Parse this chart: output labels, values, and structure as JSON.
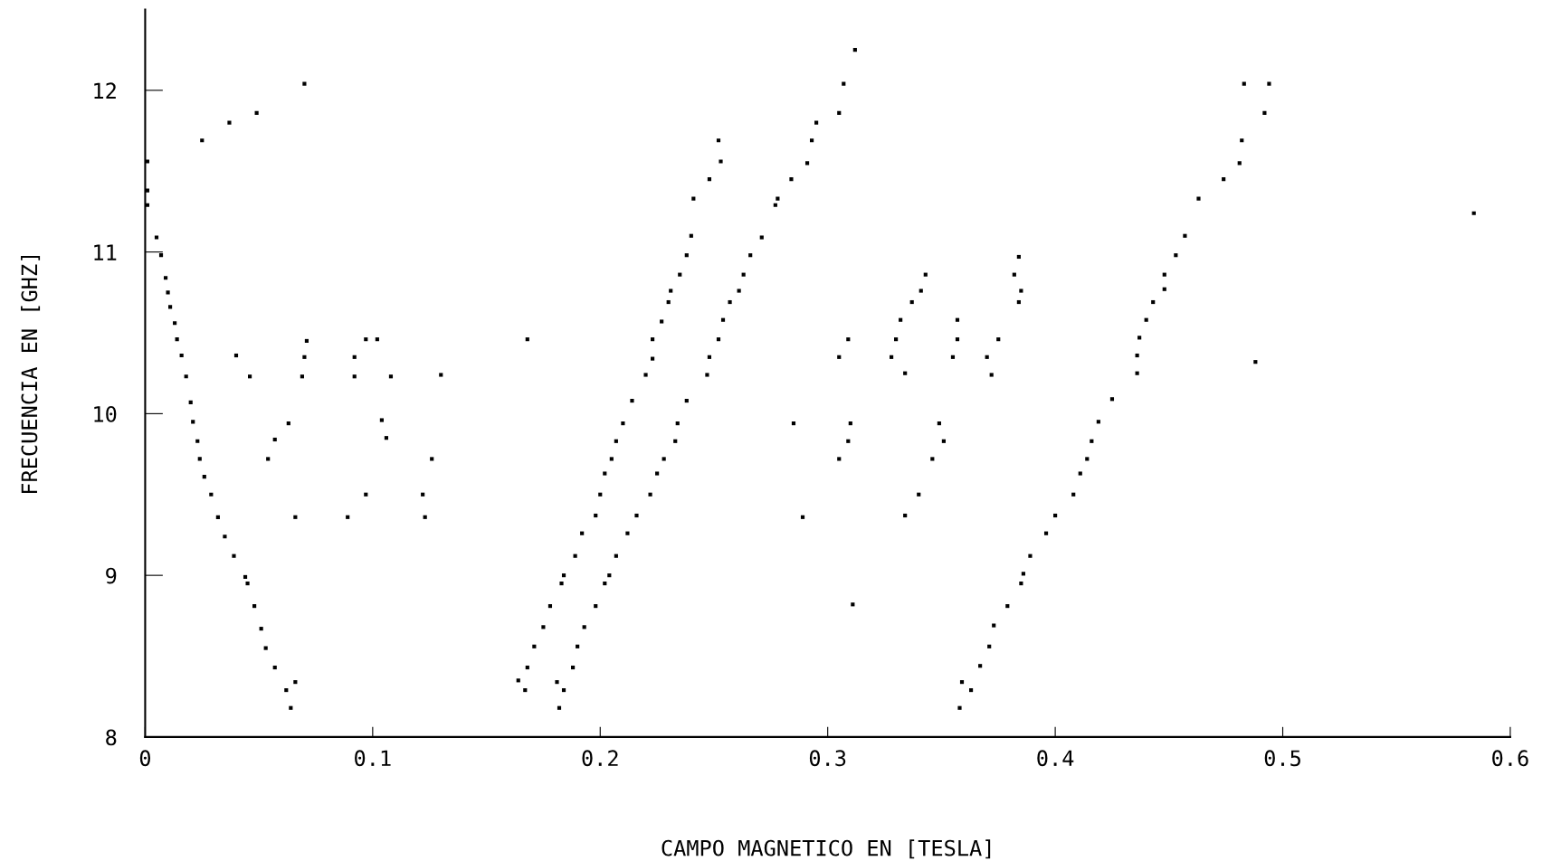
{
  "chart_data": {
    "type": "scatter",
    "xlabel": "CAMPO MAGNETICO EN [TESLA]",
    "ylabel": "FRECUENCIA EN [GHZ]",
    "xlim": [
      0,
      0.6
    ],
    "ylim": [
      8,
      12.5
    ],
    "xticks": [
      0,
      0.1,
      0.2,
      0.3,
      0.4,
      0.5,
      0.6
    ],
    "yticks": [
      8,
      9,
      10,
      11,
      12
    ],
    "marker": "square",
    "series": [
      {
        "color": "#000000",
        "x": [
          0.001,
          0.001,
          0.001,
          0.005,
          0.007,
          0.009,
          0.01,
          0.011,
          0.013,
          0.014,
          0.016,
          0.018,
          0.02,
          0.021,
          0.023,
          0.024,
          0.026,
          0.029,
          0.032,
          0.035,
          0.039,
          0.044,
          0.045,
          0.048,
          0.051,
          0.053,
          0.057,
          0.062,
          0.066,
          0.064,
          0.025,
          0.037,
          0.049,
          0.07,
          0.04,
          0.046,
          0.054,
          0.057,
          0.063,
          0.066,
          0.069,
          0.07,
          0.071,
          0.089,
          0.092,
          0.092,
          0.097,
          0.102,
          0.097,
          0.104,
          0.106,
          0.108,
          0.122,
          0.123,
          0.126,
          0.13,
          0.168,
          0.164,
          0.167,
          0.168,
          0.171,
          0.175,
          0.178,
          0.183,
          0.184,
          0.189,
          0.192,
          0.198,
          0.2,
          0.202,
          0.205,
          0.207,
          0.21,
          0.214,
          0.22,
          0.223,
          0.223,
          0.227,
          0.23,
          0.231,
          0.235,
          0.238,
          0.24,
          0.241,
          0.248,
          0.253,
          0.252,
          0.182,
          0.181,
          0.184,
          0.188,
          0.19,
          0.193,
          0.198,
          0.202,
          0.204,
          0.207,
          0.212,
          0.216,
          0.222,
          0.225,
          0.228,
          0.233,
          0.234,
          0.238,
          0.247,
          0.248,
          0.252,
          0.254,
          0.257,
          0.261,
          0.263,
          0.266,
          0.271,
          0.277,
          0.278,
          0.284,
          0.291,
          0.293,
          0.295,
          0.305,
          0.307,
          0.312,
          0.305,
          0.309,
          0.328,
          0.33,
          0.332,
          0.337,
          0.341,
          0.343,
          0.334,
          0.355,
          0.357,
          0.357,
          0.285,
          0.289,
          0.31,
          0.309,
          0.305,
          0.311,
          0.349,
          0.351,
          0.346,
          0.34,
          0.334,
          0.359,
          0.363,
          0.358,
          0.367,
          0.371,
          0.373,
          0.379,
          0.385,
          0.386,
          0.389,
          0.396,
          0.4,
          0.408,
          0.411,
          0.414,
          0.416,
          0.419,
          0.425,
          0.436,
          0.436,
          0.437,
          0.44,
          0.443,
          0.448,
          0.448,
          0.453,
          0.457,
          0.463,
          0.474,
          0.481,
          0.482,
          0.492,
          0.483,
          0.494,
          0.384,
          0.382,
          0.385,
          0.384,
          0.375,
          0.37,
          0.372,
          0.488,
          0.584
        ],
        "values": [
          11.56,
          11.29,
          11.38,
          11.09,
          10.98,
          10.84,
          10.75,
          10.66,
          10.56,
          10.46,
          10.36,
          10.23,
          10.07,
          9.95,
          9.83,
          9.72,
          9.61,
          9.5,
          9.36,
          9.24,
          9.12,
          8.99,
          8.95,
          8.81,
          8.67,
          8.55,
          8.43,
          8.29,
          8.34,
          8.18,
          11.69,
          11.8,
          11.86,
          12.04,
          10.36,
          10.23,
          9.72,
          9.84,
          9.94,
          9.36,
          10.23,
          10.35,
          10.45,
          9.36,
          10.35,
          10.23,
          10.46,
          10.46,
          9.5,
          9.96,
          9.85,
          10.23,
          9.5,
          9.36,
          9.72,
          10.24,
          10.46,
          8.35,
          8.29,
          8.43,
          8.56,
          8.68,
          8.81,
          8.95,
          9.0,
          9.12,
          9.26,
          9.37,
          9.5,
          9.63,
          9.72,
          9.83,
          9.94,
          10.08,
          10.24,
          10.34,
          10.46,
          10.57,
          10.69,
          10.76,
          10.86,
          10.98,
          11.1,
          11.33,
          11.45,
          11.56,
          11.69,
          8.18,
          8.34,
          8.29,
          8.43,
          8.56,
          8.68,
          8.81,
          8.95,
          9.0,
          9.12,
          9.26,
          9.37,
          9.5,
          9.63,
          9.72,
          9.83,
          9.94,
          10.08,
          10.24,
          10.35,
          10.46,
          10.58,
          10.69,
          10.76,
          10.86,
          10.98,
          11.09,
          11.29,
          11.33,
          11.45,
          11.55,
          11.69,
          11.8,
          11.86,
          12.04,
          12.25,
          10.35,
          10.46,
          10.35,
          10.46,
          10.58,
          10.69,
          10.76,
          10.86,
          10.25,
          10.35,
          10.46,
          10.58,
          9.94,
          9.36,
          9.94,
          9.83,
          9.72,
          8.82,
          9.94,
          9.83,
          9.72,
          9.5,
          9.37,
          8.34,
          8.29,
          8.18,
          8.44,
          8.56,
          8.69,
          8.81,
          8.95,
          9.01,
          9.12,
          9.26,
          9.37,
          9.5,
          9.63,
          9.72,
          9.83,
          9.95,
          10.09,
          10.25,
          10.36,
          10.47,
          10.58,
          10.69,
          10.77,
          10.86,
          10.98,
          11.1,
          11.33,
          11.45,
          11.55,
          11.69,
          11.86,
          12.04,
          12.04,
          10.97,
          10.86,
          10.76,
          10.69,
          10.46,
          10.35,
          10.24,
          10.32,
          11.24
        ]
      }
    ]
  }
}
